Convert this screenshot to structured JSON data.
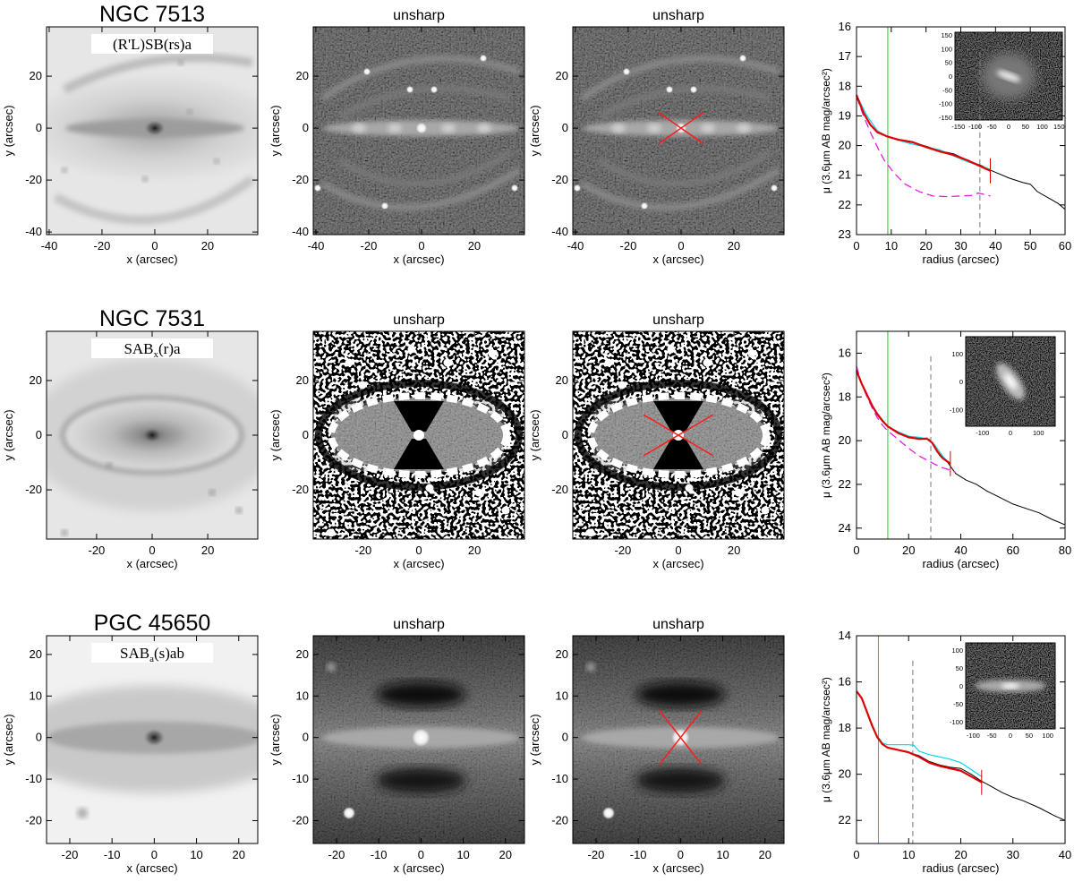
{
  "figure": {
    "rows": [
      {
        "galaxy_name": "NGC 7513",
        "morphology": {
          "base": "(R'L)SB(rs)a",
          "sub": "",
          "rest": ""
        },
        "image_axes": {
          "xlabel": "x (arcsec)",
          "ylabel": "y (arcsec)",
          "range": [
            -41,
            39
          ],
          "x_ticks": [
            -40,
            -20,
            0,
            20
          ],
          "y_ticks": [
            -40,
            -20,
            0,
            20
          ]
        },
        "unsharp_titles": [
          "unsharp",
          "unsharp"
        ],
        "x_marker": {
          "half_width": 8.5,
          "half_height": 6
        },
        "profile": {
          "xlabel": "radius (arcsec)",
          "ylabel": "μ (3.6μm AB mag/arcsec²)",
          "xlim": [
            0,
            60
          ],
          "ylim": [
            16,
            23
          ],
          "x_ticks": [
            0,
            10,
            20,
            30,
            40,
            50,
            60
          ],
          "y_ticks": [
            16,
            17,
            18,
            19,
            20,
            21,
            22,
            23
          ],
          "green_line_x": 9,
          "dashed_line_x": 35.5,
          "red_tick_x": 38.5,
          "curves": {
            "black": [
              [
                0,
                18.3
              ],
              [
                2,
                18.9
              ],
              [
                4,
                19.3
              ],
              [
                6,
                19.55
              ],
              [
                9,
                19.7
              ],
              [
                12,
                19.82
              ],
              [
                16,
                19.9
              ],
              [
                20,
                20.02
              ],
              [
                24,
                20.18
              ],
              [
                28,
                20.28
              ],
              [
                32,
                20.5
              ],
              [
                36,
                20.68
              ],
              [
                38,
                20.8
              ],
              [
                40,
                20.9
              ],
              [
                44,
                21.1
              ],
              [
                48,
                21.25
              ],
              [
                50,
                21.3
              ],
              [
                52,
                21.55
              ],
              [
                55,
                21.75
              ],
              [
                58,
                21.95
              ],
              [
                60,
                22.15
              ]
            ],
            "red": [
              [
                0,
                18.3
              ],
              [
                2,
                18.9
              ],
              [
                4,
                19.3
              ],
              [
                6,
                19.55
              ],
              [
                9,
                19.7
              ],
              [
                12,
                19.8
              ],
              [
                16,
                19.88
              ],
              [
                20,
                20.05
              ],
              [
                24,
                20.2
              ],
              [
                28,
                20.32
              ],
              [
                32,
                20.5
              ],
              [
                36,
                20.72
              ],
              [
                38.5,
                20.85
              ]
            ],
            "cyan": [
              [
                0,
                18.3
              ],
              [
                3,
                19.0
              ],
              [
                6,
                19.5
              ],
              [
                9,
                19.7
              ],
              [
                12,
                19.82
              ],
              [
                16,
                19.95
              ],
              [
                20,
                20.05
              ],
              [
                24,
                20.15
              ],
              [
                28,
                20.35
              ],
              [
                32,
                20.55
              ],
              [
                36,
                20.7
              ],
              [
                38.5,
                20.8
              ]
            ],
            "magenta": [
              [
                0,
                18.35
              ],
              [
                2,
                19.0
              ],
              [
                4,
                19.55
              ],
              [
                6,
                20.05
              ],
              [
                8,
                20.5
              ],
              [
                11,
                20.95
              ],
              [
                14,
                21.3
              ],
              [
                18,
                21.55
              ],
              [
                22,
                21.7
              ],
              [
                26,
                21.72
              ],
              [
                30,
                21.7
              ],
              [
                33,
                21.68
              ],
              [
                35,
                21.6
              ],
              [
                37,
                21.65
              ],
              [
                38.5,
                21.7
              ]
            ]
          },
          "inset": {
            "ticks": [
              -150,
              -100,
              -50,
              0,
              50,
              100,
              150
            ],
            "x_labels": [
              "-150",
              "-100",
              "-50",
              "0",
              "50",
              "100",
              "150"
            ],
            "y_labels": [
              "150",
              "100",
              "50",
              "0",
              "-50",
              "-100",
              "-150"
            ],
            "range": [
              -160,
              160
            ]
          }
        }
      },
      {
        "galaxy_name": "NGC 7531",
        "morphology": {
          "base": "SAB",
          "sub": "x",
          "rest": "(r)a"
        },
        "image_axes": {
          "xlabel": "x (arcsec)",
          "ylabel": "y (arcsec)",
          "range": [
            -38,
            38
          ],
          "x_ticks": [
            -20,
            0,
            20
          ],
          "y_ticks": [
            -20,
            0,
            20
          ]
        },
        "unsharp_titles": [
          "unsharp",
          "unsharp"
        ],
        "x_marker": {
          "half_width": 12.5,
          "half_height": 7.5
        },
        "profile": {
          "xlabel": "radius (arcsec)",
          "ylabel": "μ (3.6μm AB mag/arcsec²)",
          "xlim": [
            0,
            80
          ],
          "ylim": [
            15,
            24.5
          ],
          "x_ticks": [
            0,
            20,
            40,
            60,
            80
          ],
          "y_ticks": [
            16,
            18,
            20,
            22,
            24
          ],
          "green_line_x": 12,
          "dashed_line_x": 28.5,
          "red_tick_x": 36,
          "curves": {
            "black": [
              [
                0,
                16.8
              ],
              [
                2,
                17.4
              ],
              [
                4,
                17.9
              ],
              [
                6,
                18.4
              ],
              [
                8,
                18.8
              ],
              [
                10,
                19.1
              ],
              [
                12,
                19.35
              ],
              [
                16,
                19.6
              ],
              [
                20,
                19.8
              ],
              [
                24,
                19.9
              ],
              [
                28,
                19.95
              ],
              [
                30,
                20.3
              ],
              [
                32,
                20.7
              ],
              [
                35,
                21.0
              ],
              [
                38,
                21.5
              ],
              [
                42,
                21.8
              ],
              [
                46,
                22.0
              ],
              [
                50,
                22.3
              ],
              [
                55,
                22.6
              ],
              [
                60,
                22.9
              ],
              [
                65,
                23.1
              ],
              [
                70,
                23.3
              ],
              [
                75,
                23.6
              ],
              [
                80,
                23.85
              ]
            ],
            "red": [
              [
                0,
                16.8
              ],
              [
                2,
                17.4
              ],
              [
                4,
                17.9
              ],
              [
                6,
                18.4
              ],
              [
                8,
                18.8
              ],
              [
                10,
                19.1
              ],
              [
                12,
                19.35
              ],
              [
                16,
                19.65
              ],
              [
                20,
                19.85
              ],
              [
                24,
                19.92
              ],
              [
                27,
                19.9
              ],
              [
                29,
                20.1
              ],
              [
                31,
                20.5
              ],
              [
                33,
                20.8
              ],
              [
                36,
                21.05
              ]
            ],
            "cyan": [
              [
                0,
                16.8
              ],
              [
                3,
                17.7
              ],
              [
                6,
                18.4
              ],
              [
                9,
                18.9
              ],
              [
                12,
                19.35
              ],
              [
                16,
                19.6
              ],
              [
                20,
                19.8
              ],
              [
                24,
                19.85
              ],
              [
                28,
                19.95
              ],
              [
                30,
                20.2
              ],
              [
                33,
                20.7
              ],
              [
                36,
                21.1
              ]
            ],
            "magenta": [
              [
                0,
                16.6
              ],
              [
                2,
                17.4
              ],
              [
                4,
                18.0
              ],
              [
                6,
                18.5
              ],
              [
                8,
                18.95
              ],
              [
                10,
                19.3
              ],
              [
                12,
                19.55
              ],
              [
                16,
                19.95
              ],
              [
                20,
                20.35
              ],
              [
                24,
                20.7
              ],
              [
                28,
                20.95
              ],
              [
                32,
                21.2
              ],
              [
                36,
                21.35
              ],
              [
                38,
                21.45
              ]
            ]
          },
          "inset": {
            "ticks": [
              -100,
              0,
              100
            ],
            "x_labels": [
              "-100",
              "0",
              "100"
            ],
            "y_labels": [
              "100",
              "0",
              "-100"
            ],
            "range": [
              -160,
              160
            ]
          }
        }
      },
      {
        "galaxy_name": "PGC  45650",
        "morphology": {
          "base": "SAB",
          "sub": "a",
          "rest": "(s)ab"
        },
        "image_axes": {
          "xlabel": "x (arcsec)",
          "ylabel": "y (arcsec)",
          "range": [
            -25.5,
            24.5
          ],
          "x_ticks": [
            -20,
            -10,
            0,
            10,
            20
          ],
          "y_ticks": [
            -20,
            -10,
            0,
            10,
            20
          ]
        },
        "unsharp_titles": [
          "unsharp",
          "unsharp"
        ],
        "x_marker": {
          "half_width": 5,
          "half_height": 6.5
        },
        "profile": {
          "xlabel": "radius (arcsec)",
          "ylabel": "μ (3.6μm AB mag/arcsec²)",
          "xlim": [
            0,
            40
          ],
          "ylim": [
            14,
            23
          ],
          "x_ticks": [
            0,
            10,
            20,
            30,
            40
          ],
          "y_ticks": [
            14,
            16,
            18,
            20,
            22
          ],
          "green_line_x": 4.2,
          "dashed_line_x": 10.8,
          "red_tick_x": 24,
          "curves": {
            "black": [
              [
                0,
                16.4
              ],
              [
                1,
                16.7
              ],
              [
                2,
                17.3
              ],
              [
                3,
                17.9
              ],
              [
                4,
                18.4
              ],
              [
                5,
                18.7
              ],
              [
                6,
                18.85
              ],
              [
                8,
                18.95
              ],
              [
                10,
                19.05
              ],
              [
                12,
                19.2
              ],
              [
                14,
                19.45
              ],
              [
                16,
                19.6
              ],
              [
                18,
                19.7
              ],
              [
                20,
                19.75
              ],
              [
                22,
                20.0
              ],
              [
                24,
                20.3
              ],
              [
                26,
                20.55
              ],
              [
                28,
                20.8
              ],
              [
                30,
                21.0
              ],
              [
                32,
                21.15
              ],
              [
                35,
                21.45
              ],
              [
                38,
                21.8
              ],
              [
                40,
                22.0
              ]
            ],
            "red": [
              [
                0,
                16.4
              ],
              [
                1,
                16.7
              ],
              [
                2,
                17.3
              ],
              [
                3,
                17.9
              ],
              [
                4,
                18.4
              ],
              [
                5,
                18.7
              ],
              [
                6,
                18.85
              ],
              [
                8,
                18.95
              ],
              [
                10,
                19.05
              ],
              [
                12,
                19.25
              ],
              [
                14,
                19.5
              ],
              [
                16,
                19.65
              ],
              [
                18,
                19.75
              ],
              [
                20,
                19.85
              ],
              [
                22,
                20.1
              ],
              [
                24,
                20.35
              ]
            ],
            "cyan": [
              [
                0,
                16.4
              ],
              [
                1,
                16.7
              ],
              [
                2,
                17.3
              ],
              [
                3,
                17.9
              ],
              [
                4,
                18.35
              ],
              [
                5,
                18.65
              ],
              [
                6,
                18.72
              ],
              [
                8,
                18.72
              ],
              [
                10,
                18.72
              ],
              [
                11,
                18.75
              ],
              [
                12,
                19.0
              ],
              [
                14,
                19.15
              ],
              [
                16,
                19.25
              ],
              [
                18,
                19.35
              ],
              [
                20,
                19.5
              ],
              [
                22,
                19.8
              ],
              [
                24,
                20.1
              ]
            ],
            "magenta": []
          },
          "inset": {
            "ticks": [
              -100,
              -50,
              0,
              50,
              100
            ],
            "x_labels": [
              "-100",
              "-50",
              "0",
              "50",
              "100"
            ],
            "y_labels": [
              "100",
              "50",
              "0",
              "-50",
              "-100"
            ],
            "range": [
              -120,
              120
            ]
          }
        }
      }
    ]
  }
}
